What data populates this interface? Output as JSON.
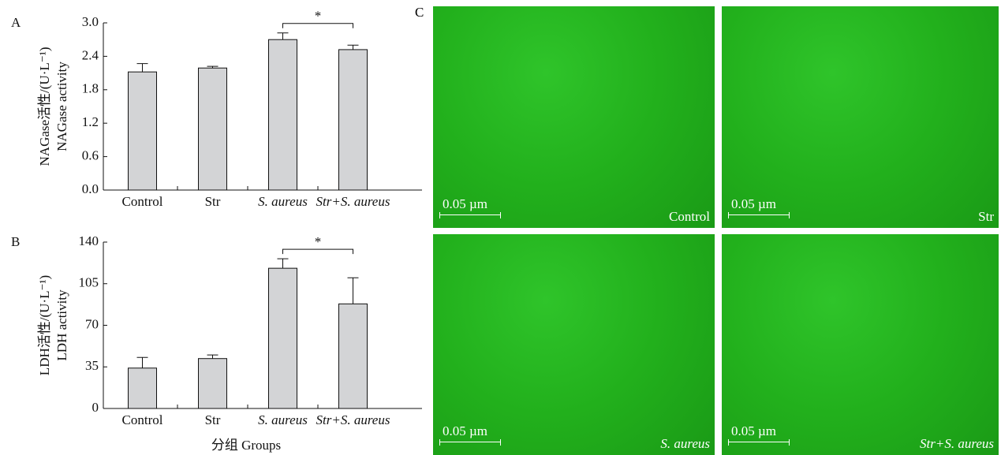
{
  "chart_data": [
    {
      "type": "bar",
      "panel": "A",
      "ylabel": [
        "NAGase活性/(U·L⁻¹)",
        "NAGase activity"
      ],
      "categories": [
        "Control",
        "Str",
        "S. aureus",
        "Str+S. aureus"
      ],
      "values": [
        2.12,
        2.19,
        2.7,
        2.52
      ],
      "errors": [
        0.15,
        0.03,
        0.12,
        0.08
      ],
      "color": "#d3d4d6",
      "ylim": [
        0,
        3
      ],
      "yticks": [
        {
          "value": 0,
          "label": "0.0"
        },
        {
          "value": 0.6,
          "label": "0.6"
        },
        {
          "value": 1.2,
          "label": "1.2"
        },
        {
          "value": 1.8,
          "label": "1.8"
        },
        {
          "value": 2.4,
          "label": "2.4"
        },
        {
          "value": 3,
          "label": "3.0"
        }
      ],
      "significance": {
        "label": "*",
        "between": [
          "S. aureus",
          "Str+S. aureus"
        ]
      }
    },
    {
      "type": "bar",
      "panel": "B",
      "ylabel": [
        "LDH活性/(U·L⁻¹)",
        "LDH activity"
      ],
      "xlabel": "分组 Groups",
      "categories": [
        "Control",
        "Str",
        "S. aureus",
        "Str+S. aureus"
      ],
      "values": [
        34,
        42,
        118,
        88
      ],
      "errors": [
        9,
        3,
        8,
        22
      ],
      "color": "#d3d4d6",
      "ylim": [
        0,
        140
      ],
      "yticks": [
        0,
        35,
        70,
        105,
        140
      ],
      "significance": {
        "label": "*",
        "between": [
          "S. aureus",
          "Str+S. aureus"
        ]
      }
    }
  ],
  "images_panel": {
    "panel": "C",
    "images": [
      {
        "caption": "Control",
        "scale_bar": "0.05 µm"
      },
      {
        "caption": "Str",
        "scale_bar": "0.05 µm"
      },
      {
        "caption": "S. aureus",
        "scale_bar": "0.05 µm"
      },
      {
        "caption": "Str+S. aureus",
        "scale_bar": "0.05 µm"
      }
    ]
  }
}
